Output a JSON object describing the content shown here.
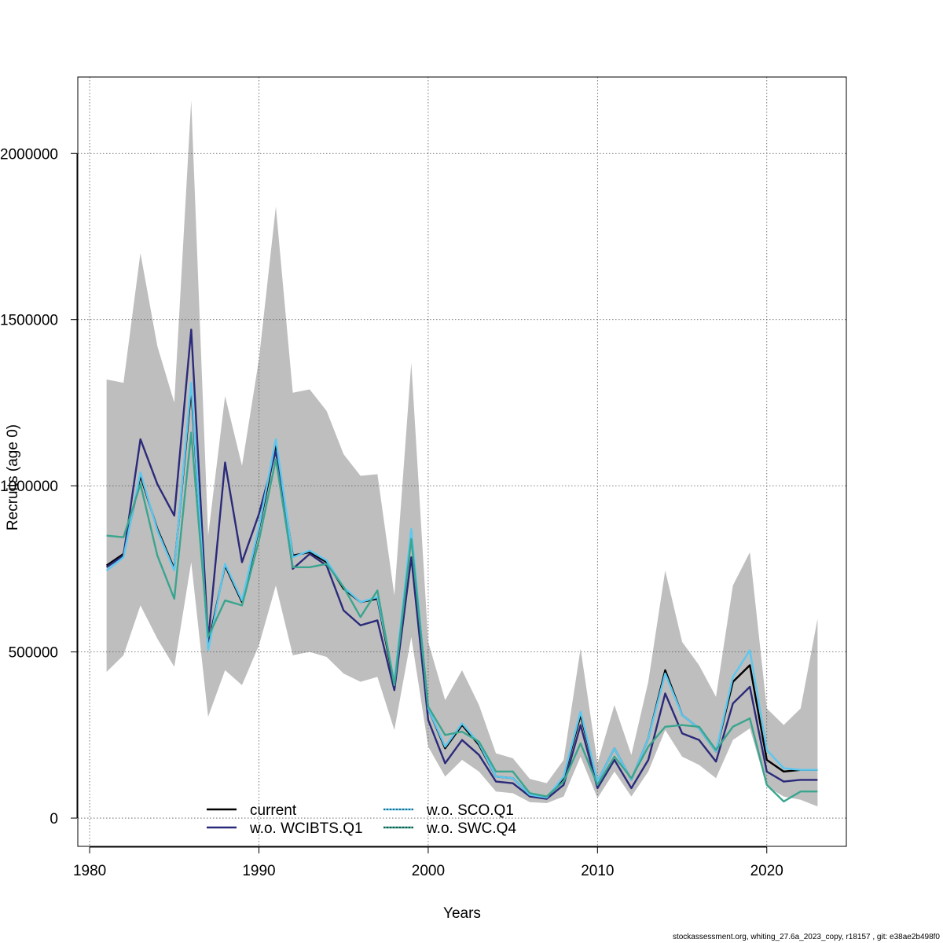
{
  "chart_data": {
    "type": "line",
    "title": "",
    "xlabel": "Years",
    "ylabel": "Recruits (age 0)",
    "xlim": [
      1980,
      2023
    ],
    "ylim": [
      -85000,
      2230000
    ],
    "x_ticks": [
      1980,
      1990,
      2000,
      2010,
      2020
    ],
    "y_ticks": [
      0,
      500000,
      1000000,
      1500000,
      2000000
    ],
    "grid": true,
    "legend_position": "bottom-left",
    "x": [
      1981,
      1982,
      1983,
      1984,
      1985,
      1986,
      1987,
      1988,
      1989,
      1990,
      1991,
      1992,
      1993,
      1994,
      1995,
      1996,
      1997,
      1998,
      1999,
      2000,
      2001,
      2002,
      2003,
      2004,
      2005,
      2006,
      2007,
      2008,
      2009,
      2010,
      2011,
      2012,
      2013,
      2014,
      2015,
      2016,
      2017,
      2018,
      2019,
      2020,
      2021,
      2022,
      2023
    ],
    "band": {
      "name": "confidence interval",
      "color": "#bebebe",
      "upper": [
        1320000,
        1310000,
        1700000,
        1420000,
        1250000,
        2160000,
        850000,
        1270000,
        1060000,
        1380000,
        1840000,
        1280000,
        1290000,
        1225000,
        1095000,
        1030000,
        1035000,
        670000,
        1370000,
        530000,
        355000,
        445000,
        340000,
        195000,
        180000,
        118000,
        105000,
        175000,
        510000,
        165000,
        340000,
        190000,
        410000,
        745000,
        530000,
        460000,
        365000,
        700000,
        800000,
        330000,
        280000,
        330000,
        600000
      ],
      "lower": [
        440000,
        490000,
        640000,
        540000,
        455000,
        770000,
        305000,
        445000,
        400000,
        520000,
        700000,
        490000,
        500000,
        485000,
        435000,
        410000,
        425000,
        265000,
        545000,
        215000,
        125000,
        175000,
        140000,
        80000,
        75000,
        48000,
        45000,
        65000,
        185000,
        60000,
        140000,
        65000,
        140000,
        265000,
        185000,
        160000,
        120000,
        235000,
        270000,
        95000,
        65000,
        55000,
        35000
      ]
    },
    "series": [
      {
        "name": "current",
        "color": "#000000",
        "dash": "",
        "width": 2.4,
        "values": [
          760000,
          795000,
          1030000,
          870000,
          750000,
          1290000,
          520000,
          760000,
          650000,
          870000,
          1120000,
          790000,
          800000,
          770000,
          690000,
          650000,
          660000,
          400000,
          860000,
          330000,
          210000,
          280000,
          220000,
          125000,
          120000,
          70000,
          62000,
          120000,
          310000,
          110000,
          210000,
          115000,
          240000,
          445000,
          310000,
          270000,
          200000,
          410000,
          460000,
          175000,
          140000,
          145000,
          145000
        ]
      },
      {
        "name": "w.o. WCIBTS.Q1",
        "color": "#2b2a7a",
        "dash": "",
        "width": 2.4,
        "values": [
          755000,
          790000,
          1140000,
          1005000,
          910000,
          1470000,
          535000,
          1070000,
          770000,
          915000,
          1105000,
          750000,
          795000,
          760000,
          625000,
          580000,
          595000,
          385000,
          785000,
          295000,
          165000,
          235000,
          190000,
          110000,
          105000,
          65000,
          58000,
          100000,
          280000,
          90000,
          175000,
          90000,
          175000,
          375000,
          255000,
          235000,
          170000,
          345000,
          395000,
          140000,
          110000,
          115000,
          115000
        ]
      },
      {
        "name": "w.o. SCO.Q1",
        "color": "#5ac8f0",
        "dash": "",
        "width": 2.4,
        "values": [
          745000,
          785000,
          1040000,
          865000,
          745000,
          1310000,
          505000,
          765000,
          655000,
          875000,
          1140000,
          785000,
          805000,
          775000,
          695000,
          650000,
          665000,
          410000,
          870000,
          330000,
          215000,
          285000,
          225000,
          125000,
          120000,
          70000,
          62000,
          125000,
          320000,
          110000,
          210000,
          115000,
          240000,
          435000,
          310000,
          270000,
          200000,
          425000,
          505000,
          205000,
          150000,
          145000,
          145000
        ]
      },
      {
        "name": "w.o. SWC.Q4",
        "color": "#3aa58f",
        "dash": "",
        "width": 2.4,
        "values": [
          850000,
          845000,
          1005000,
          790000,
          660000,
          1160000,
          545000,
          655000,
          640000,
          835000,
          1080000,
          755000,
          755000,
          765000,
          695000,
          605000,
          685000,
          400000,
          840000,
          335000,
          250000,
          260000,
          230000,
          140000,
          140000,
          75000,
          65000,
          110000,
          225000,
          100000,
          185000,
          120000,
          215000,
          275000,
          280000,
          275000,
          205000,
          275000,
          300000,
          100000,
          50000,
          80000,
          80000
        ]
      }
    ],
    "legend": [
      {
        "label": "current",
        "color": "#000000",
        "overlay": ""
      },
      {
        "label": "w.o. WCIBTS.Q1",
        "color": "#2b2a7a",
        "overlay": ""
      },
      {
        "label": "w.o. SCO.Q1",
        "color": "#5ac8f0",
        "overlay": "#000000"
      },
      {
        "label": "w.o. SWC.Q4",
        "color": "#3aa58f",
        "overlay": "#000000"
      }
    ]
  },
  "footer_text": "stockassessment.org, whiting_27.6a_2023_copy, r18157 , git: e38ae2b498f0"
}
